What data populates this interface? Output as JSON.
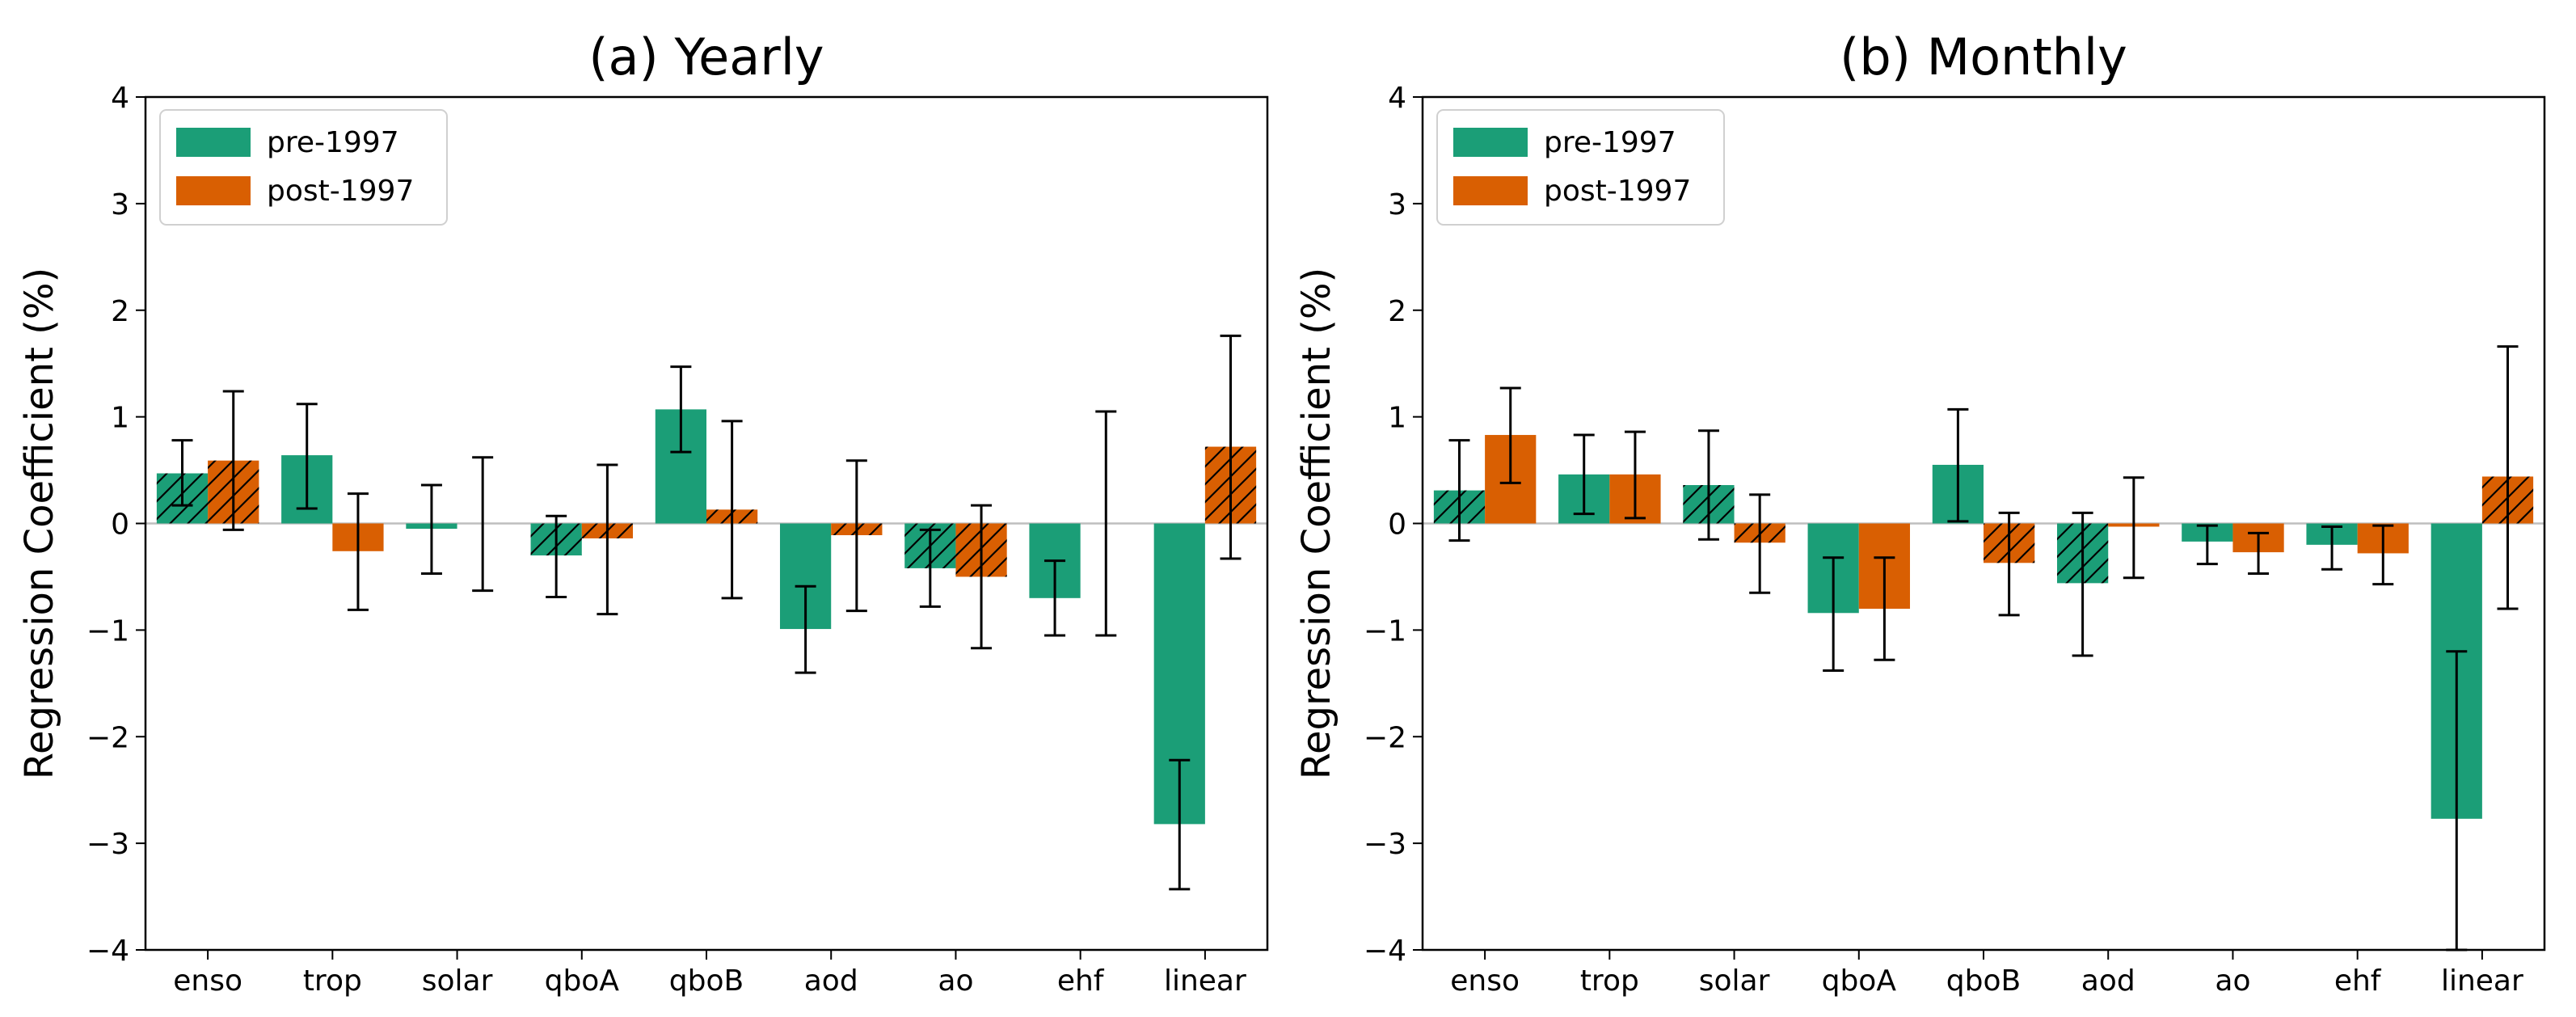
{
  "chart_data": [
    {
      "type": "bar",
      "title": "(a) Yearly",
      "xlabel": "",
      "ylabel": "Regression Coefficient (%)",
      "ylim": [
        -4,
        4
      ],
      "yticks": [
        -4,
        -3,
        -2,
        -1,
        0,
        1,
        2,
        3,
        4
      ],
      "ytick_labels": [
        "−4",
        "−3",
        "−2",
        "−1",
        "0",
        "1",
        "2",
        "3",
        "4"
      ],
      "categories": [
        "enso",
        "trop",
        "solar",
        "qboA",
        "qboB",
        "aod",
        "ao",
        "ehf",
        "linear"
      ],
      "legend_position": "top-left",
      "series": [
        {
          "name": "pre-1997",
          "color": "#1b9e77",
          "values": [
            0.47,
            0.64,
            -0.05,
            -0.3,
            1.07,
            -0.99,
            -0.42,
            -0.7,
            -2.82
          ],
          "err_low": [
            0.17,
            0.14,
            -0.47,
            -0.69,
            0.67,
            -1.4,
            -0.78,
            -1.05,
            -3.43
          ],
          "err_high": [
            0.78,
            1.12,
            0.36,
            0.07,
            1.47,
            -0.59,
            -0.06,
            -0.35,
            -2.22
          ],
          "hatched": [
            true,
            false,
            false,
            true,
            false,
            false,
            true,
            false,
            false
          ]
        },
        {
          "name": "post-1997",
          "color": "#d95f02",
          "values": [
            0.59,
            -0.26,
            0.0,
            -0.14,
            0.13,
            -0.11,
            -0.5,
            0.0,
            0.72
          ],
          "err_low": [
            -0.06,
            -0.81,
            -0.63,
            -0.85,
            -0.7,
            -0.82,
            -1.17,
            -1.05,
            -0.33
          ],
          "err_high": [
            1.24,
            0.28,
            0.62,
            0.55,
            0.96,
            0.59,
            0.17,
            1.05,
            1.76
          ],
          "hatched": [
            true,
            false,
            false,
            true,
            true,
            true,
            true,
            false,
            true
          ]
        }
      ]
    },
    {
      "type": "bar",
      "title": "(b) Monthly",
      "xlabel": "",
      "ylabel": "Regression Coefficient (%)",
      "ylim": [
        -4,
        4
      ],
      "yticks": [
        -4,
        -3,
        -2,
        -1,
        0,
        1,
        2,
        3,
        4
      ],
      "ytick_labels": [
        "−4",
        "−3",
        "−2",
        "−1",
        "0",
        "1",
        "2",
        "3",
        "4"
      ],
      "categories": [
        "enso",
        "trop",
        "solar",
        "qboA",
        "qboB",
        "aod",
        "ao",
        "ehf",
        "linear"
      ],
      "legend_position": "top-left",
      "series": [
        {
          "name": "pre-1997",
          "color": "#1b9e77",
          "values": [
            0.31,
            0.46,
            0.36,
            -0.84,
            0.55,
            -0.56,
            -0.17,
            -0.2,
            -2.77
          ],
          "err_low": [
            -0.16,
            0.09,
            -0.15,
            -1.38,
            0.02,
            -1.24,
            -0.38,
            -0.43,
            -4.0
          ],
          "err_high": [
            0.78,
            0.83,
            0.87,
            -0.32,
            1.07,
            0.1,
            -0.02,
            -0.03,
            -1.2
          ],
          "hatched": [
            true,
            false,
            true,
            false,
            false,
            true,
            false,
            false,
            false
          ]
        },
        {
          "name": "post-1997",
          "color": "#d95f02",
          "values": [
            0.83,
            0.46,
            -0.18,
            -0.8,
            -0.37,
            -0.03,
            -0.27,
            -0.28,
            0.44
          ],
          "err_low": [
            0.38,
            0.05,
            -0.65,
            -1.28,
            -0.86,
            -0.51,
            -0.47,
            -0.57,
            -0.8
          ],
          "err_high": [
            1.27,
            0.86,
            0.27,
            -0.32,
            0.1,
            0.43,
            -0.09,
            -0.02,
            1.66
          ],
          "hatched": [
            false,
            false,
            true,
            false,
            true,
            false,
            false,
            false,
            true
          ]
        }
      ]
    }
  ]
}
